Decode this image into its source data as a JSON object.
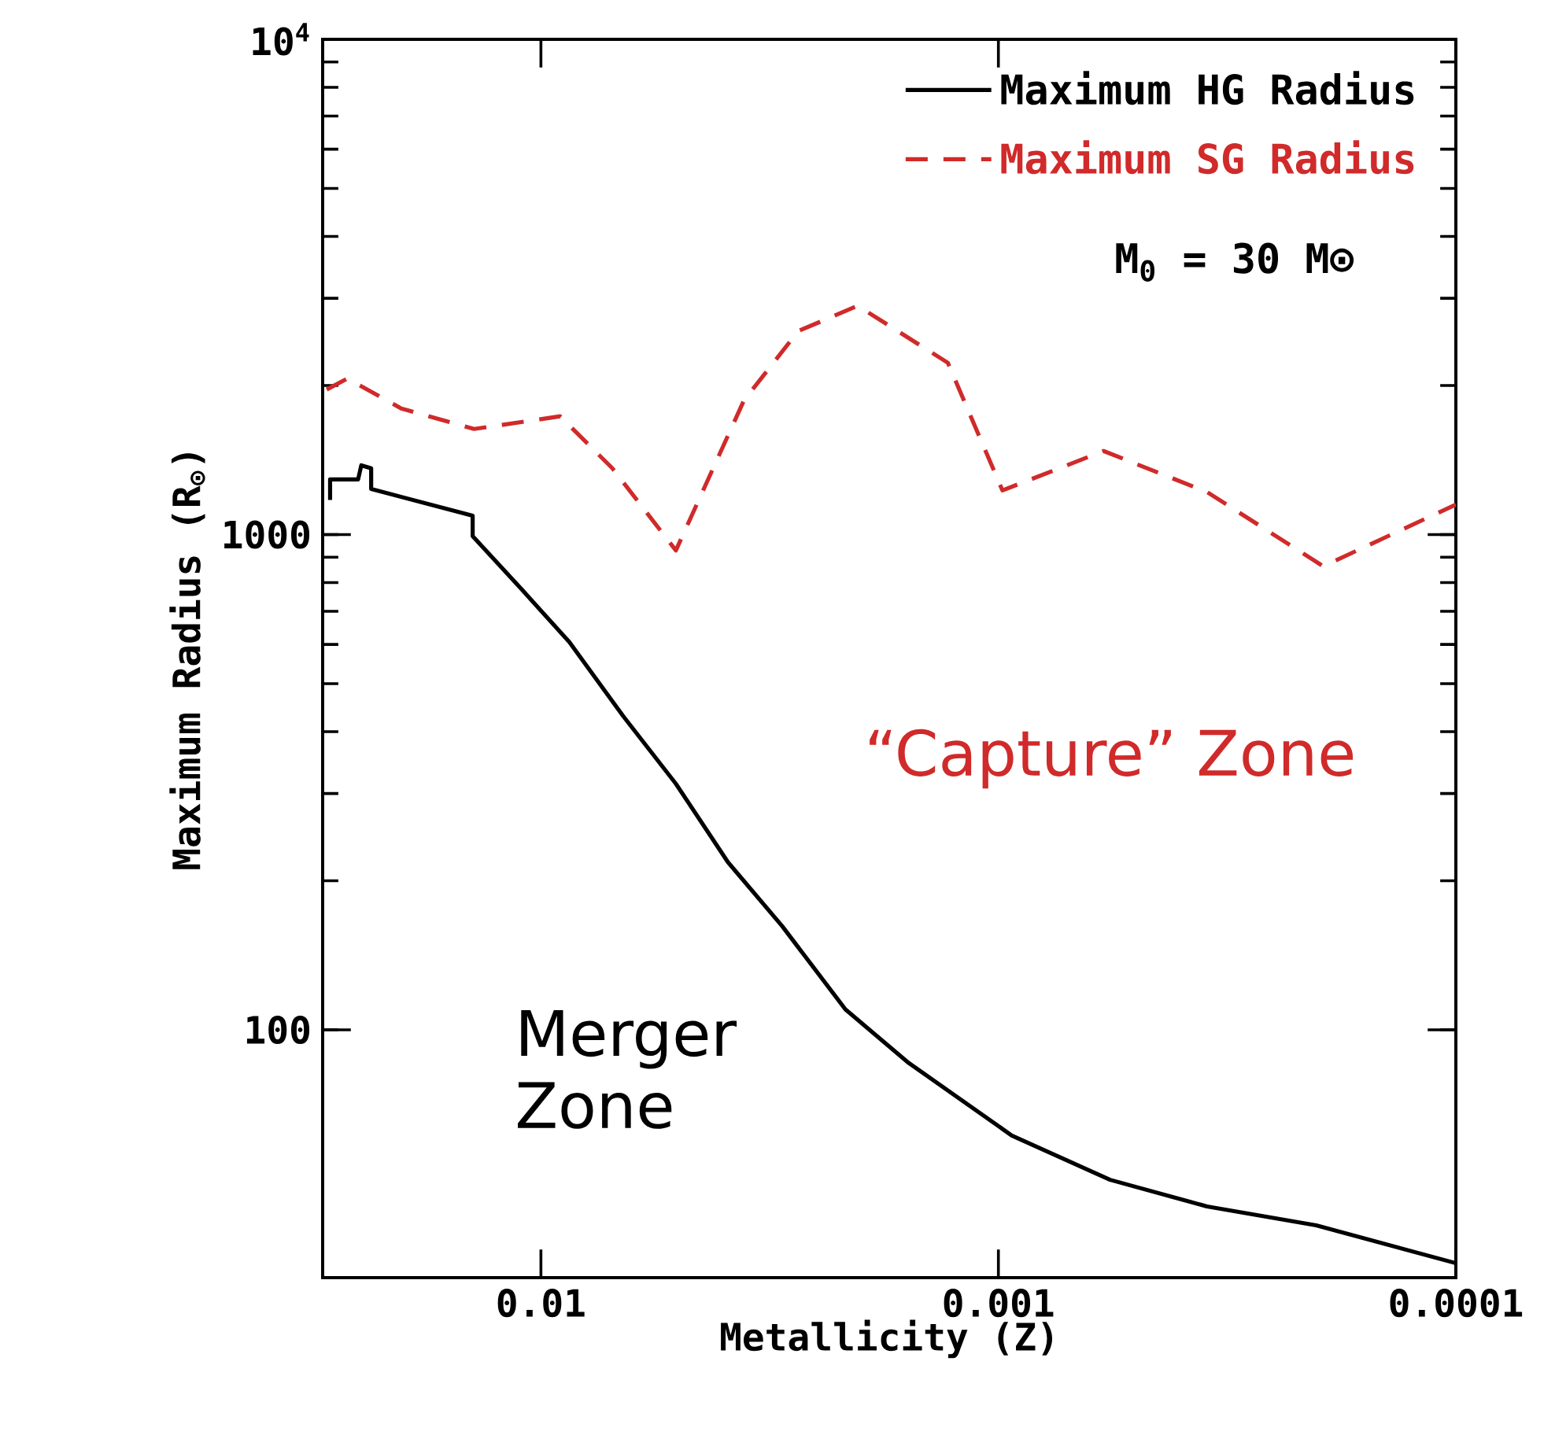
{
  "chart_data": {
    "type": "line",
    "xlabel": "Metallicity (Z)",
    "ylabel": "Maximum Radius (R$_{⊙}$)",
    "log": "xy",
    "xlim": [
      0.03,
      0.0001
    ],
    "ylim": [
      31.6,
      10000
    ],
    "xticks": [
      0.01,
      0.001,
      0.0001
    ],
    "yticks": [
      100,
      1000,
      {
        "value": 10000,
        "label": "10$^{4}$"
      }
    ],
    "legend": "top right",
    "grid": false,
    "series": [
      {
        "name": "Maximum HG Radius",
        "color": "#000000",
        "line_style": "solid",
        "x": [
          0.0289,
          0.0289,
          0.0251,
          0.0247,
          0.0235,
          0.0235,
          0.0141,
          0.0141,
          0.011,
          0.00867,
          0.00661,
          0.00507,
          0.0039,
          0.00297,
          0.00216,
          0.00157,
          0.000935,
          0.00057,
          0.00035,
          0.000202,
          0.0001
        ],
        "values": [
          1175,
          1292,
          1292,
          1380,
          1361,
          1236,
          1092,
          993,
          774,
          607,
          430,
          314,
          218,
          162,
          110,
          85.7,
          61.2,
          49.8,
          44.0,
          40.3,
          33.8
        ]
      },
      {
        "name": "Maximum SG Radius",
        "color": "#d02a2a",
        "line_style": "dashed",
        "x": [
          0.0294,
          0.0265,
          0.0202,
          0.014,
          0.00908,
          0.00698,
          0.00507,
          0.0036,
          0.00274,
          0.00203,
          0.00129,
          0.00098,
          0.000589,
          0.00035,
          0.000195,
          0.0001
        ],
        "values": [
          1963,
          2066,
          1798,
          1634,
          1733,
          1361,
          929,
          1866,
          2575,
          2897,
          2223,
          1228,
          1475,
          1219,
          863,
          1150
        ]
      }
    ],
    "annotations": [
      "M$_{0}$ = 30 M⊙",
      "Merger Zone",
      "“Capture” Zone"
    ]
  }
}
